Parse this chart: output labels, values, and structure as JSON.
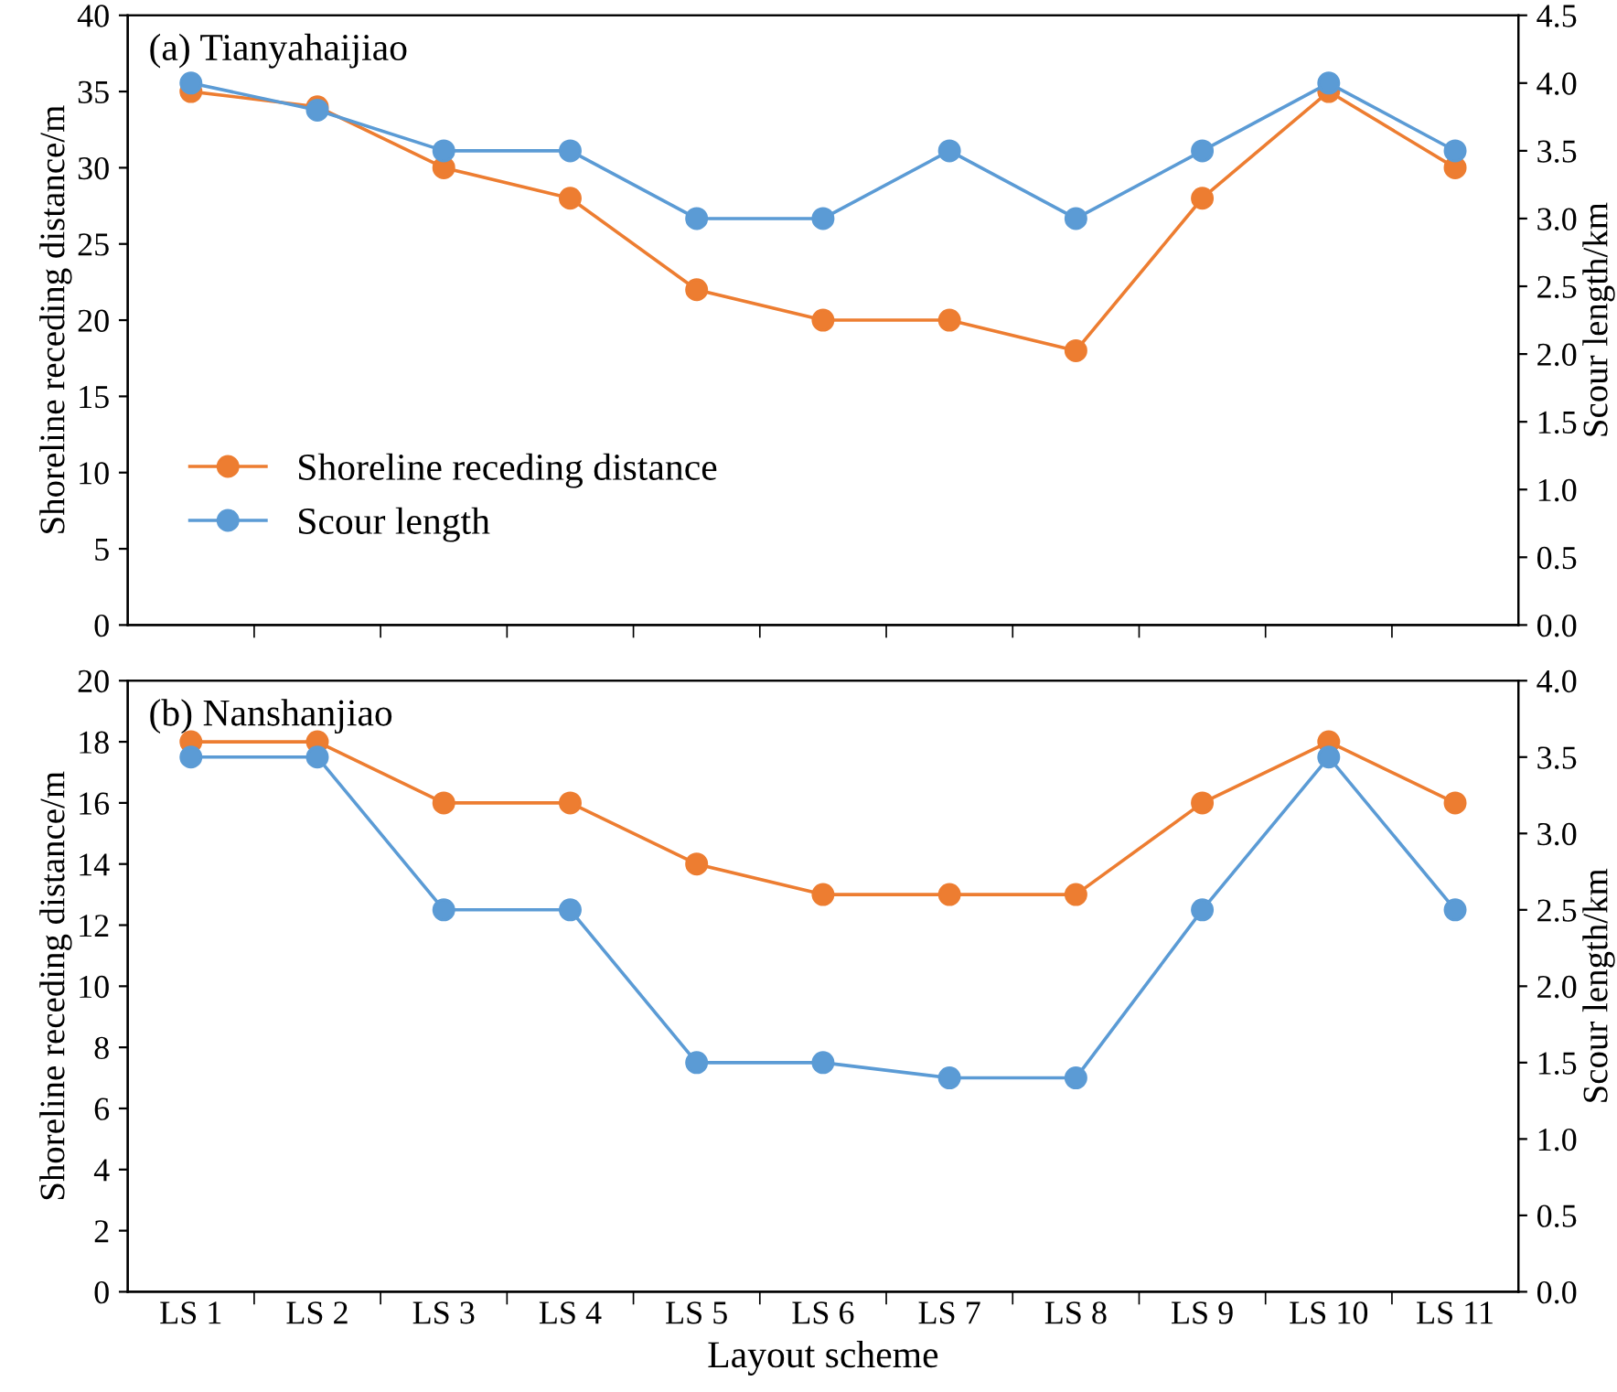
{
  "chart_data": [
    {
      "type": "line",
      "title": "(a) Tianyahaijiao",
      "ylabel": "Shoreline receding distance/m",
      "y2label": "Scour length/km",
      "categories": [
        null,
        null,
        null,
        null,
        null,
        null,
        null,
        null,
        null,
        null,
        null
      ],
      "series": [
        {
          "name": "Shoreline receding distance",
          "color": "#ed7d31",
          "values": [
            35,
            34,
            30,
            28,
            22,
            20,
            20,
            18,
            28,
            35,
            30
          ]
        },
        {
          "name": "Scour length",
          "color": "#5b9bd5",
          "axis": "y2",
          "values": [
            4.0,
            3.8,
            3.5,
            3.5,
            3.0,
            3.0,
            3.5,
            3.0,
            3.5,
            4.0,
            3.5
          ]
        }
      ],
      "ylim": [
        0,
        40
      ],
      "yticks": [
        0,
        5,
        10,
        15,
        20,
        25,
        30,
        35,
        40
      ],
      "y2lim": [
        0,
        4.5
      ],
      "y2ticks": [
        {
          "value": 0,
          "label": "0.0"
        },
        0.5,
        {
          "value": 1,
          "label": "1.0"
        },
        1.5,
        {
          "value": 2,
          "label": "2.0"
        },
        2.5,
        {
          "value": 3,
          "label": "3.0"
        },
        3.5,
        {
          "value": 4,
          "label": "4.0"
        },
        4.5
      ],
      "tick_labels": "y",
      "marker": "circle",
      "line_style": "solid",
      "legend": "bottom left",
      "grid": false
    },
    {
      "type": "line",
      "title": "(b) Nanshanjiao",
      "ylabel": "Shoreline receding distance/m",
      "y2label": "Scour length/km",
      "xlabel": "Layout scheme",
      "categories": [
        "LS 1",
        "LS 2",
        "LS 3",
        "LS 4",
        "LS 5",
        "LS 6",
        "LS 7",
        "LS 8",
        "LS 9",
        "LS 10",
        "LS 11"
      ],
      "series": [
        {
          "color": "#ed7d31",
          "values": [
            18,
            18,
            16,
            16,
            14,
            13,
            13,
            13,
            16,
            18,
            16
          ]
        },
        {
          "color": "#5b9bd5",
          "axis": "y2",
          "values": [
            3.5,
            3.5,
            2.5,
            2.5,
            1.5,
            1.5,
            1.4,
            1.4,
            2.5,
            3.5,
            2.5
          ]
        }
      ],
      "ylim": [
        0,
        20
      ],
      "yticks": [
        0,
        2,
        4,
        6,
        8,
        10,
        12,
        14,
        16,
        18,
        20
      ],
      "y2lim": [
        0,
        4.0
      ],
      "y2ticks": [
        {
          "value": 0,
          "label": "0.0"
        },
        0.5,
        {
          "value": 1,
          "label": "1.0"
        },
        1.5,
        {
          "value": 2,
          "label": "2.0"
        },
        2.5,
        {
          "value": 3,
          "label": "3.0"
        },
        3.5,
        {
          "value": 4,
          "label": "4.0"
        }
      ],
      "marker": "circle",
      "line_style": "solid",
      "legend": false,
      "grid": false
    }
  ]
}
